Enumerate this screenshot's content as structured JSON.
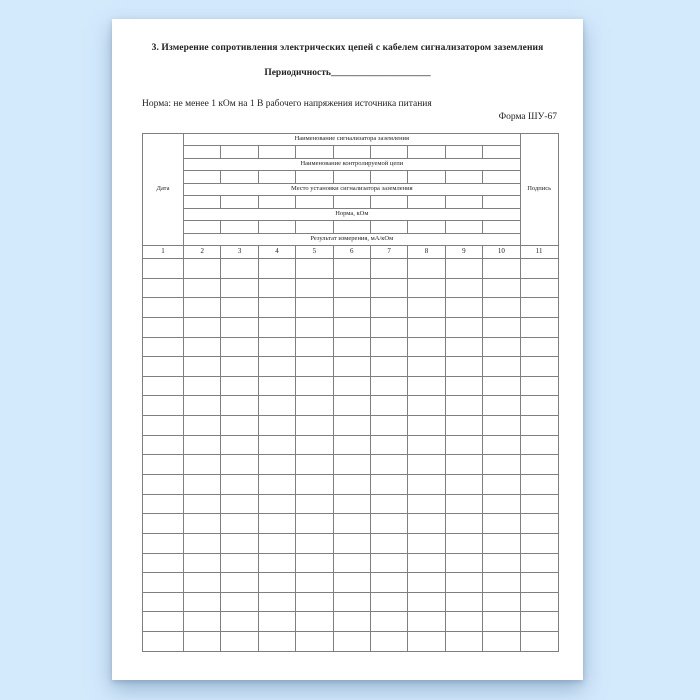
{
  "document": {
    "title": "3. Измерение сопротивления электрических цепей с кабелем сигнализатором заземления",
    "periodicity_label": "Периодичность",
    "periodicity_blank": "_____________________",
    "norm_line": "Норма: не менее 1 кОм на 1 В рабочего напряжения источника питания",
    "form_code": "Форма ШУ-67"
  },
  "table": {
    "date_header": "Дата",
    "signature_header": "Подпись",
    "group_headers": [
      "Наименование сигнализатора заземления",
      "Наименование контролируемой цепи",
      "Место установки сигнализатора заземления",
      "Норма, кОм",
      "Результат измерения, мА/кОм"
    ],
    "column_numbers": [
      "1",
      "2",
      "3",
      "4",
      "5",
      "6",
      "7",
      "8",
      "9",
      "10",
      "11"
    ],
    "group_columns": 9,
    "empty_data_rows": 20
  },
  "colors": {
    "background": "#d3e9fc",
    "paper": "#ffffff",
    "table_border": "#7f7f7f",
    "text": "#222222"
  }
}
